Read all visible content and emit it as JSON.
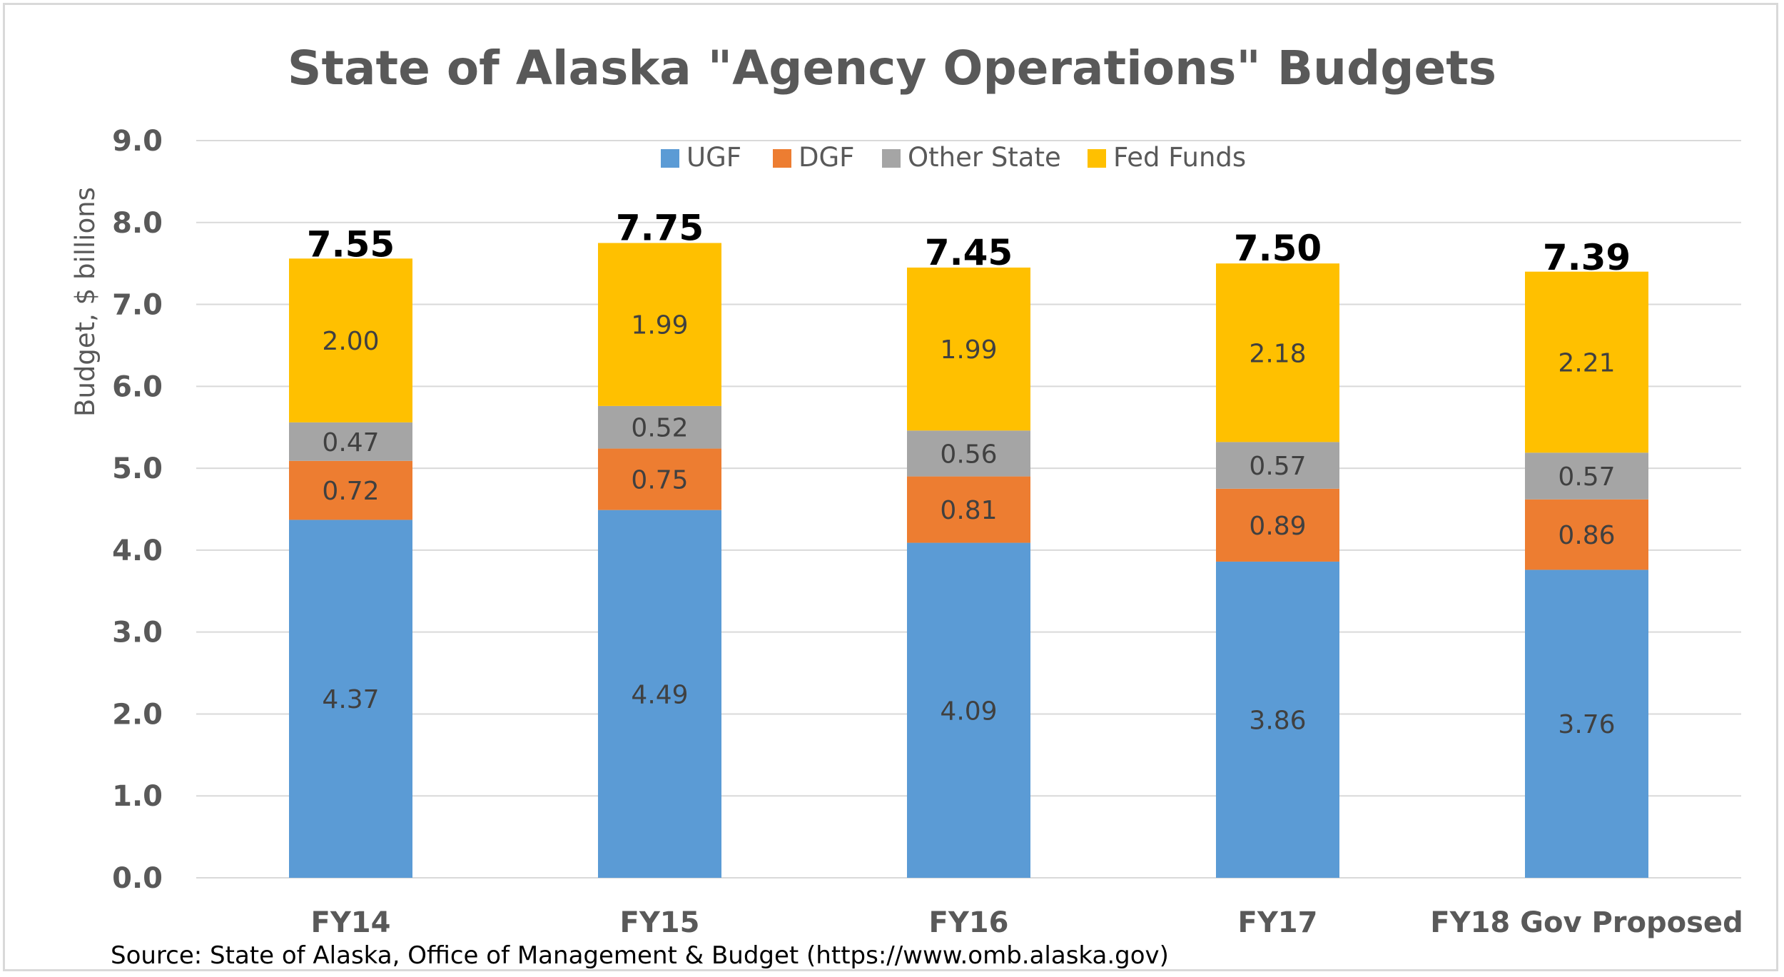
{
  "chart_data": {
    "type": "bar",
    "stacked": true,
    "title": "State of Alaska \"Agency Operations\" Budgets",
    "xlabel": "",
    "ylabel": "Budget, $ billions",
    "ylim": [
      0,
      9
    ],
    "yticks": [
      "0.0",
      "1.0",
      "2.0",
      "3.0",
      "4.0",
      "5.0",
      "6.0",
      "7.0",
      "8.0",
      "9.0"
    ],
    "grid": true,
    "legend_position": "top",
    "categories": [
      "FY14",
      "FY15",
      "FY16",
      "FY17",
      "FY18 Gov Proposed"
    ],
    "series": [
      {
        "name": "UGF",
        "color": "#5b9bd5",
        "values": [
          4.37,
          4.49,
          4.09,
          3.86,
          3.76
        ],
        "labels": [
          "4.37",
          "4.49",
          "4.09",
          "3.86",
          "3.76"
        ]
      },
      {
        "name": "DGF",
        "color": "#ed7d31",
        "values": [
          0.72,
          0.75,
          0.81,
          0.89,
          0.86
        ],
        "labels": [
          "0.72",
          "0.75",
          "0.81",
          "0.89",
          "0.86"
        ]
      },
      {
        "name": "Other State",
        "color": "#a5a5a5",
        "values": [
          0.47,
          0.52,
          0.56,
          0.57,
          0.57
        ],
        "labels": [
          "0.47",
          "0.52",
          "0.56",
          "0.57",
          "0.57"
        ]
      },
      {
        "name": "Fed Funds",
        "color": "#ffc000",
        "values": [
          2.0,
          1.99,
          1.99,
          2.18,
          2.21
        ],
        "labels": [
          "2.00",
          "1.99",
          "1.99",
          "2.18",
          "2.21"
        ]
      }
    ],
    "totals": [
      7.55,
      7.75,
      7.45,
      7.5,
      7.39
    ],
    "total_labels": [
      "7.55",
      "7.75",
      "7.45",
      "7.50",
      "7.39"
    ],
    "source": "Source: State of Alaska, Office of Management & Budget (https://www.omb.alaska.gov)"
  }
}
